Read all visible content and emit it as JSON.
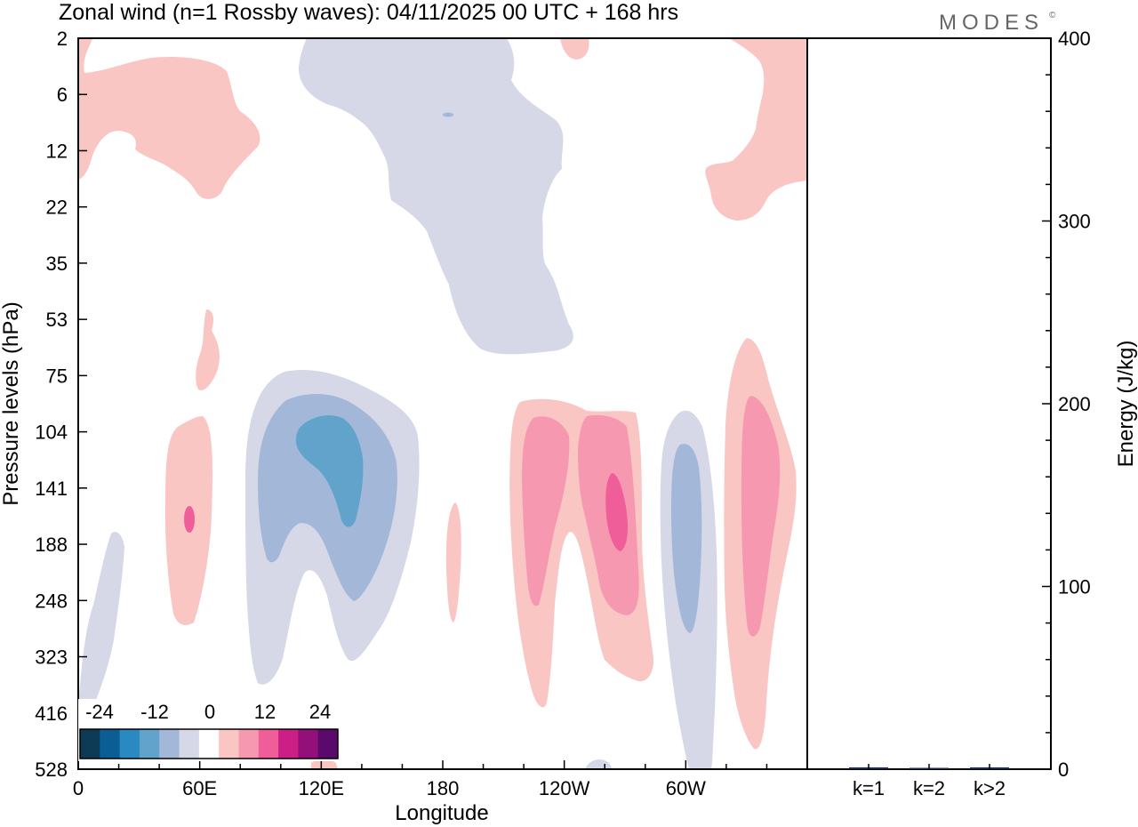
{
  "chart_data": [
    {
      "type": "heatmap",
      "title": "Zonal wind (n=1 Rossby waves):  04/11/2025  00 UTC  + 168 hrs",
      "xlabel": "Longitude",
      "ylabel": "Pressure levels (hPa)",
      "x_ticks": [
        "0",
        "60E",
        "120E",
        "180",
        "120W",
        "60W"
      ],
      "x_tick_degrees": [
        0,
        60,
        120,
        180,
        240,
        300
      ],
      "xlim_degrees": [
        0,
        360
      ],
      "y_ticks": [
        "2",
        "6",
        "12",
        "22",
        "35",
        "53",
        "75",
        "104",
        "141",
        "188",
        "248",
        "323",
        "416",
        "528"
      ],
      "y_scale": "vertical levels, evenly spaced",
      "colorbar": {
        "labels": [
          "-24",
          "-12",
          "0",
          "12",
          "24"
        ],
        "colors": [
          "#0d3a55",
          "#0a5e95",
          "#2a89c0",
          "#61a3cb",
          "#a3b8d8",
          "#d6d7e7",
          "#ffffff",
          "#f9c6c3",
          "#f798b1",
          "#ef5e98",
          "#cc1f86",
          "#93107a",
          "#5a0a6a"
        ]
      },
      "logo": "MODES",
      "logo_mark": "©"
    },
    {
      "type": "bar",
      "categories": [
        "k=1",
        "k=2",
        "k>2"
      ],
      "values": [
        1,
        0.5,
        1
      ],
      "ylabel": "Energy (J/kg)",
      "ylim": [
        0,
        400
      ],
      "y_ticks": [
        "0",
        "100",
        "200",
        "300",
        "400"
      ]
    }
  ],
  "colors": {
    "neg_light": "#d6d7e7",
    "neg_mid": "#a3b8d8",
    "neg_strong": "#61a3cb",
    "pos_light": "#f9c6c3",
    "pos_mid": "#f798b1",
    "pos_strong": "#ef5e98",
    "bar": "#1a2a55"
  }
}
